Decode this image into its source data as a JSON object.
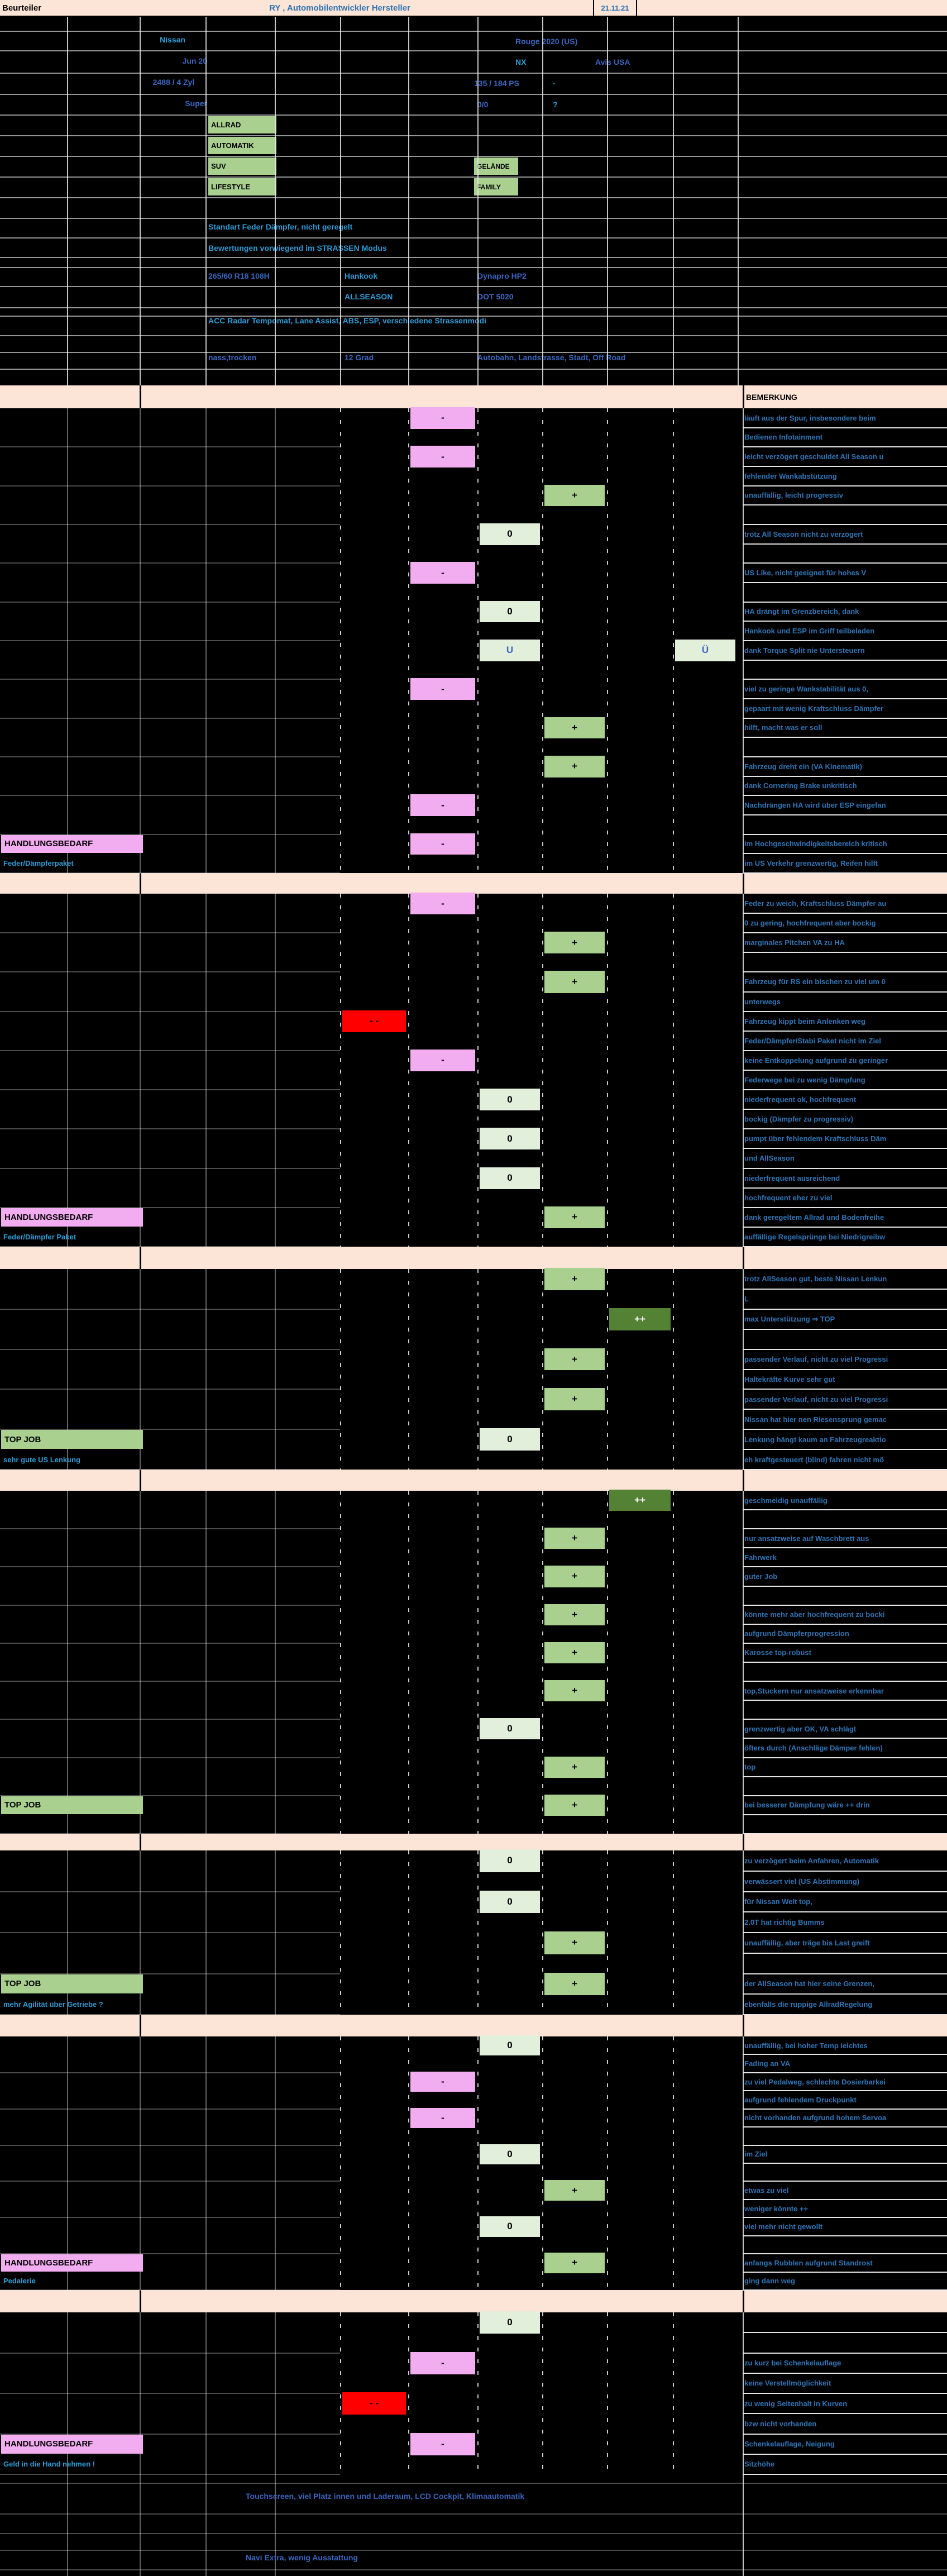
{
  "window": {
    "beurteiler": "Beurteiler",
    "title": "RY , Automobilentwickler Hersteller",
    "date": "21.11.21",
    "bemerkung_header": "BEMERKUNG"
  },
  "colors": {
    "orange_row": "#fce4d6",
    "pink": "#f2acf0",
    "red": "#ff0000",
    "pale_green": "#e2efda",
    "green": "#a9d08e",
    "dark_green": "#548235",
    "blue_bright": "#2e9bd5",
    "blue_royal": "#3a66c0",
    "blue_comment": "#2e75b6",
    "title_blue": "#2e74b5"
  },
  "vehicle": {
    "brand": "Nissan",
    "model": "Rouge 2020 (US)",
    "test_month": "Jun 20",
    "trim": "NX",
    "rental": "Avis USA",
    "engine": "2488 / 4 Zyl",
    "power": "135 / 184 PS",
    "dash_mark": "-",
    "fuel": "Super",
    "zero_counts": "0/0",
    "question_mark": "?",
    "tags_left": [
      "ALLRAD",
      "AUTOMATIK",
      "SUV",
      "LIFESTYLE"
    ],
    "tags_right": [
      "GELÄNDE",
      "FAMILY"
    ],
    "note1": "Standart Feder Dämpfer, nicht geregelt",
    "note2": "Bewertungen vorwiegend im STRASSEN Modus",
    "tire_size": "265/60 R18 108H",
    "tire_brand": "Hankook",
    "tire_model": "Dynapro HP2",
    "tire_type": "ALLSEASON",
    "tire_dot": "DOT 5020",
    "assist": "ACC Radar Tempomat, Lane Assist,  ABS, ESP, verschiedene Strassenmodi",
    "weather": "nass,trocken",
    "temperature": "12 Grad",
    "roads": "Autobahn, Landstrasse, Stadt, Off Road"
  },
  "sections": [
    {
      "rows": [
        {
          "c": "läuft aus der Spur, insbesondere beim",
          "r": "-",
          "rc": 1
        },
        {
          "c": "Bedienen Infotainment"
        },
        {
          "c": "leicht verzögert geschuldet All Season u",
          "r": "-",
          "rc": 1
        },
        {
          "c": "fehlender Wankabstützung"
        },
        {
          "c": "unauffällig, leicht progressiv",
          "r": "+",
          "rc": 3
        },
        {
          "c": ""
        },
        {
          "c": "trotz All Season nicht zu verzögert",
          "r": "0",
          "rc": 2
        },
        {
          "c": ""
        },
        {
          "c": "US Like, nicht geeignet für hohes V",
          "r": "-",
          "rc": 1
        },
        {
          "c": ""
        },
        {
          "c": "HA drängt im Grenzbereich, dank",
          "r": "0",
          "rc": 2
        },
        {
          "c": "Hankook und ESP im Griff teilbeladen"
        },
        {
          "c": "dank Torque Split nie Untersteuern",
          "r": "U",
          "rc": 2,
          "r2": "Ü",
          "rc2": 5
        },
        {
          "c": ""
        },
        {
          "c": "viel zu geringe Wankstabilität aus 0,",
          "r": "-",
          "rc": 1
        },
        {
          "c": "gepaart mit wenig Kraftschluss Dämpfer"
        },
        {
          "c": "hilft, macht was er soll",
          "r": "+",
          "rc": 3
        },
        {
          "c": ""
        },
        {
          "c": "Fahrzeug dreht ein (VA Kinematik)",
          "r": "+",
          "rc": 3
        },
        {
          "c": "dank Cornering Brake unkritisch"
        },
        {
          "c": "Nachdrängen HA wird über ESP eingefan",
          "r": "-",
          "rc": 1
        },
        {
          "c": ""
        },
        {
          "c": "im Hochgeschwindigkeitsbereich kritisch",
          "r": "-",
          "rc": 1,
          "lab": "HANDLUNGSBEDARF"
        },
        {
          "c": "im US Verkehr grenzwertig, Reifen hilft",
          "sub": "Feder/Dämpferpaket"
        }
      ]
    },
    {
      "rows": [
        {
          "c": "Feder zu weich, Kraftschluss Dämpfer au",
          "r": "-",
          "rc": 1
        },
        {
          "c": "0 zu gering, hochfrequent aber bockig"
        },
        {
          "c": "marginales Pitchen VA zu HA",
          "r": "+",
          "rc": 3
        },
        {
          "c": ""
        },
        {
          "c": "Fahrzeug für RS ein bischen zu viel um 0",
          "r": "+",
          "rc": 3
        },
        {
          "c": "unterwegs"
        },
        {
          "c": "Fahrzeug kippt beim Anlenken weg",
          "r": "- -",
          "rc": 0
        },
        {
          "c": "Feder/Dämpfer/Stabi Paket nicht im Ziel"
        },
        {
          "c": "keine Entkoppelung aufgrund zu geringer",
          "r": "-",
          "rc": 1
        },
        {
          "c": "Federwege bei zu wenig Dämpfung"
        },
        {
          "c": "niederfrequent ok, hochfrequent",
          "r": "0",
          "rc": 2
        },
        {
          "c": "bockig (Dämpfer zu progressiv)"
        },
        {
          "c": "pumpt über fehlendem Kraftschluss Däm",
          "r": "0",
          "rc": 2
        },
        {
          "c": "und AllSeason"
        },
        {
          "c": "niederfrequent ausreichend",
          "r": "0",
          "rc": 2
        },
        {
          "c": "hochfrequent eher zu viel"
        },
        {
          "c": "dank geregeltem Allrad und Bodenfreihe",
          "r": "+",
          "rc": 3,
          "lab": "HANDLUNGSBEDARF"
        },
        {
          "c": "auffällige Regelsprünge bei Niedrigreibw",
          "sub": "Feder/Dämpfer Paket"
        }
      ]
    },
    {
      "rows": [
        {
          "c": "trotz AllSeason gut, beste Nissan Lenkun",
          "r": "+",
          "rc": 3
        },
        {
          "c": "L"
        },
        {
          "c": "max Unterstützung ⇒ TOP",
          "r": "++",
          "rc": 4
        },
        {
          "c": ""
        },
        {
          "c": "passender Verlauf, nicht zu viel Progressi",
          "r": "+",
          "rc": 3
        },
        {
          "c": "Haltekräfte Kurve sehr gut"
        },
        {
          "c": "passender Verlauf, nicht zu viel Progressi",
          "r": "+",
          "rc": 3
        },
        {
          "c": "Nissan hat hier nen Riesensprung gemac"
        },
        {
          "c": "Lenkung hängt kaum an Fahrzeugreaktio",
          "r": "0",
          "rc": 2,
          "lab": "TOP JOB"
        },
        {
          "c": "eh kraftgesteuert (blind) fahren nicht mö",
          "sub": "sehr gute US Lenkung"
        }
      ]
    },
    {
      "rows": [
        {
          "c": "geschmeidig unauffällig",
          "r": "++",
          "rc": 4
        },
        {
          "c": ""
        },
        {
          "c": "nur ansatzweise auf Waschbrett aus",
          "r": "+",
          "rc": 3
        },
        {
          "c": "Fahrwerk"
        },
        {
          "c": "guter Job",
          "r": "+",
          "rc": 3
        },
        {
          "c": ""
        },
        {
          "c": "könnte mehr aber hochfrequent zu bocki",
          "r": "+",
          "rc": 3
        },
        {
          "c": "aufgrund Dämpferprogression"
        },
        {
          "c": "Karosse top-robust",
          "r": "+",
          "rc": 3
        },
        {
          "c": ""
        },
        {
          "c": "top,Stuckern nur ansatzweise erkennbar",
          "r": "+",
          "rc": 3
        },
        {
          "c": ""
        },
        {
          "c": "grenzwertig aber OK, VA schlägt",
          "r": "0",
          "rc": 2
        },
        {
          "c": "öfters durch (Anschläge Dämper fehlen)"
        },
        {
          "c": "top",
          "r": "+",
          "rc": 3
        },
        {
          "c": ""
        },
        {
          "c": "bei besserer Dämpfung wäre ++ drin",
          "r": "+",
          "rc": 3,
          "lab": "TOP JOB"
        },
        {
          "c": ""
        }
      ]
    },
    {
      "rows": [
        {
          "c": "zu verzögert beim Anfahren, Automatik",
          "r": "0",
          "rc": 2
        },
        {
          "c": "verwässert viel (US Abstimmung)"
        },
        {
          "c": "für Nissan Welt top,",
          "r": "0",
          "rc": 2
        },
        {
          "c": "2.0T hat richtig Bumms"
        },
        {
          "c": "unauffällig, aber träge bis Last greift",
          "r": "+",
          "rc": 3
        },
        {
          "c": ""
        },
        {
          "c": "der AllSeason hat hier seine Grenzen,",
          "r": "+",
          "rc": 3,
          "lab": "TOP JOB"
        },
        {
          "c": "ebenfalls die ruppige AllradRegelung",
          "sub": "mehr Agilität über Getriebe ?"
        }
      ]
    },
    {
      "rows": [
        {
          "c": "unauffällig, bei hoher Temp leichtes",
          "r": "0",
          "rc": 2
        },
        {
          "c": "Fading an VA"
        },
        {
          "c": "zu viel Pedalweg, schlechte Dosierbarkei",
          "r": "-",
          "rc": 1
        },
        {
          "c": "aufgrund fehlendem Druckpunkt"
        },
        {
          "c": "nicht vorhanden aufgrund hohem Servoa",
          "r": "-",
          "rc": 1
        },
        {
          "c": ""
        },
        {
          "c": "im Ziel",
          "r": "0",
          "rc": 2
        },
        {
          "c": ""
        },
        {
          "c": "etwas zu viel",
          "r": "+",
          "rc": 3
        },
        {
          "c": "weniger könnte ++"
        },
        {
          "c": "viel mehr nicht gewollt",
          "r": "0",
          "rc": 2
        },
        {
          "c": ""
        },
        {
          "c": "anfangs Rubblen aufgrund Standrost",
          "r": "+",
          "rc": 3,
          "lab": "HANDLUNGSBEDARF"
        },
        {
          "c": "ging dann weg",
          "sub": "Pedalerie"
        }
      ]
    },
    {
      "rows": [
        {
          "c": "",
          "r": "0",
          "rc": 2
        },
        {
          "c": ""
        },
        {
          "c": "zu kurz bei Schenkelauflage",
          "r": "-",
          "rc": 1
        },
        {
          "c": "keine Verstellmöglichkeit"
        },
        {
          "c": "zu wenig Seitenhalt in Kurven",
          "r": "- -",
          "rc": 0
        },
        {
          "c": "bzw nicht vorhanden"
        },
        {
          "c": "Schenkelauflage, Neigung",
          "r": "-",
          "rc": 1,
          "lab": "HANDLUNGSBEDARF"
        },
        {
          "c": "Sitzhöhe",
          "sub": "Geld in die Hand nehmen !"
        }
      ]
    }
  ],
  "footer": {
    "line1": "Touchscreen, viel Platz innen und Laderaum, LCD Cockpit, Klimaautomatik",
    "line2": "Navi Extra, wenig Ausstattung"
  }
}
